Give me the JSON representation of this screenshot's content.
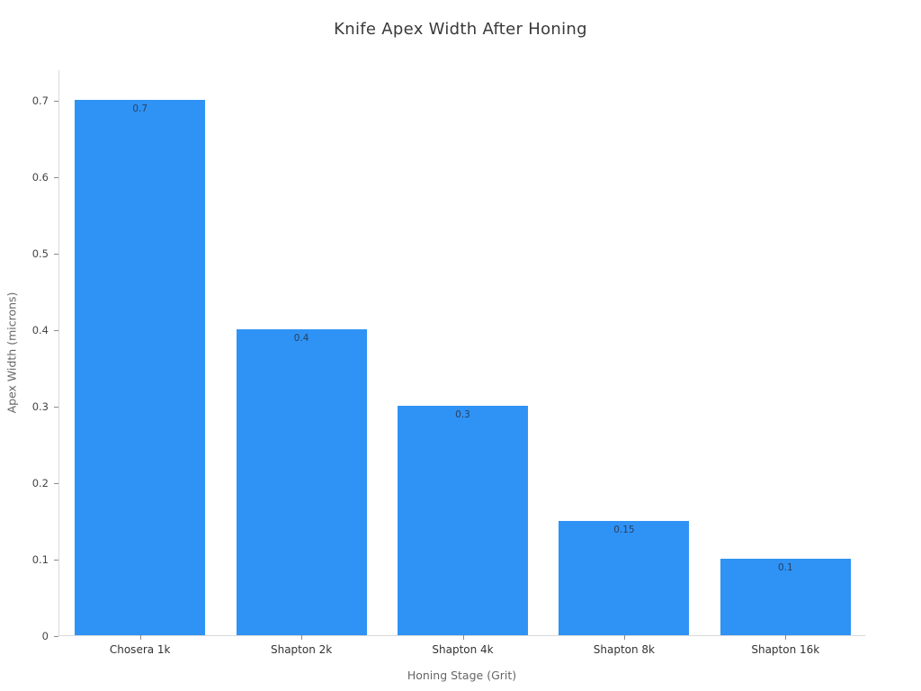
{
  "chart_data": {
    "type": "bar",
    "title": "Knife Apex Width After Honing",
    "xlabel": "Honing Stage (Grit)",
    "ylabel": "Apex Width (microns)",
    "categories": [
      "Chosera 1k",
      "Shapton 2k",
      "Shapton 4k",
      "Shapton 8k",
      "Shapton 16k"
    ],
    "values": [
      0.7,
      0.4,
      0.3,
      0.15,
      0.1
    ],
    "bar_labels": [
      "0.7",
      "0.4",
      "0.3",
      "0.15",
      "0.1"
    ],
    "yticks": [
      0,
      0.1,
      0.2,
      0.3,
      0.4,
      0.5,
      0.6,
      0.7
    ],
    "ylim": [
      0,
      0.7
    ],
    "grid": false,
    "legend_position": "none",
    "colors": {
      "bar_fill": "#2f93f5",
      "bar_value_label": "#2a3f5f",
      "axis_spine": "#d9d9d9",
      "tick_mark": "#8a8a8a",
      "tick_label": "#444444",
      "axis_title": "#666666",
      "chart_title": "#3a3a3a",
      "background": "#ffffff"
    }
  }
}
